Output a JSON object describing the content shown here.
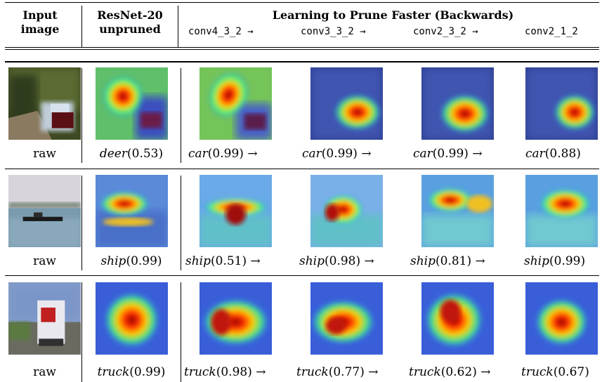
{
  "header": {
    "col1_line1": "Input",
    "col1_line2": "image",
    "col2_line1": "ResNet-20",
    "col2_line2": "unpruned",
    "group_title": "Learning to Prune Faster (Backwards)",
    "layers": [
      "conv4_3_2 →",
      "conv3_3_2 →",
      "conv2_3_2 →",
      "conv2_1_2"
    ]
  },
  "rows": [
    {
      "input_label": "raw",
      "unpruned": {
        "cls": "deer",
        "score": "(0.53)"
      },
      "pruned": [
        {
          "cls": "car",
          "score": "(0.99) →"
        },
        {
          "cls": "car",
          "score": "(0.99) →"
        },
        {
          "cls": "car",
          "score": "(0.99) →"
        },
        {
          "cls": "car",
          "score": "(0.88)"
        }
      ]
    },
    {
      "input_label": "raw",
      "unpruned": {
        "cls": "ship",
        "score": "(0.99)"
      },
      "pruned": [
        {
          "cls": "ship",
          "score": "(0.51) →"
        },
        {
          "cls": "ship",
          "score": "(0.98) →"
        },
        {
          "cls": "ship",
          "score": "(0.81) →"
        },
        {
          "cls": "ship",
          "score": "(0.99)"
        }
      ]
    },
    {
      "input_label": "raw",
      "unpruned": {
        "cls": "truck",
        "score": "(0.99)"
      },
      "pruned": [
        {
          "cls": "truck",
          "score": "(0.98) →"
        },
        {
          "cls": "truck",
          "score": "(0.77) →"
        },
        {
          "cls": "truck",
          "score": "(0.62) →"
        },
        {
          "cls": "truck",
          "score": "(0.67)"
        }
      ]
    }
  ]
}
